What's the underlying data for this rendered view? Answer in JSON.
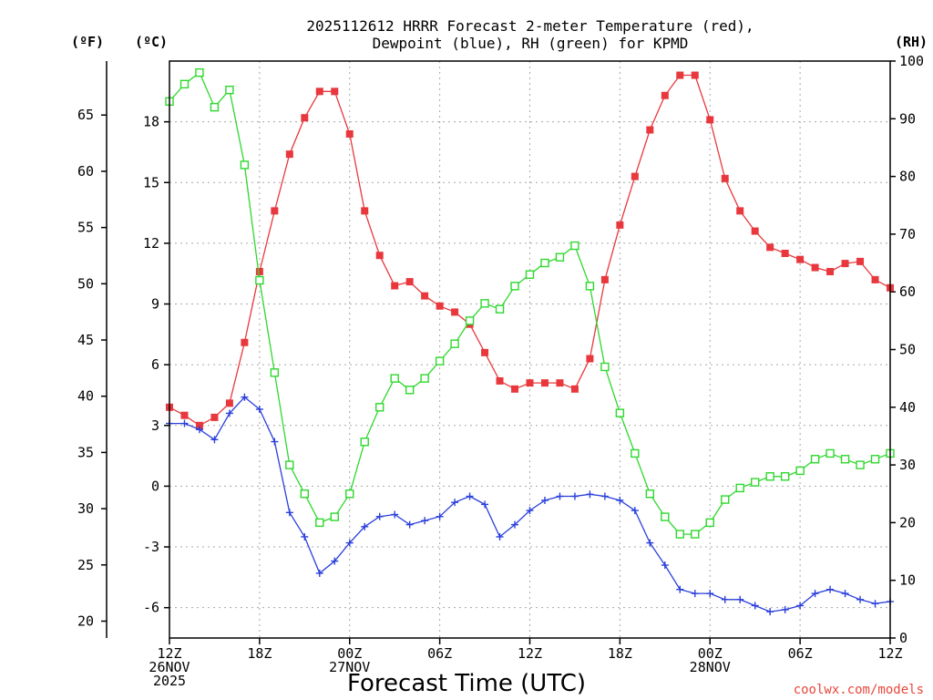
{
  "chart_data": {
    "type": "line",
    "title_line1": "2025112612 HRRR Forecast 2-meter Temperature (red),",
    "title_line2": "Dewpoint (blue), RH (green) for KPMD",
    "unit_f": "(ºF)",
    "unit_c": "(ºC)",
    "unit_rh": "(RH)",
    "xlabel": "Forecast Time (UTC)",
    "credit": "coolwx.com/models",
    "forecast_hours": [
      0,
      1,
      2,
      3,
      4,
      5,
      6,
      7,
      8,
      9,
      10,
      11,
      12,
      13,
      14,
      15,
      16,
      17,
      18,
      19,
      20,
      21,
      22,
      23,
      24,
      25,
      26,
      27,
      28,
      29,
      30,
      31,
      32,
      33,
      34,
      35,
      36,
      37,
      38,
      39,
      40,
      41,
      42,
      43,
      44,
      45,
      46,
      47,
      48
    ],
    "c_axis": {
      "range": [
        -7.5,
        21.0
      ],
      "ticks": [
        "-6",
        "-3",
        "0",
        "3",
        "6",
        "9",
        "12",
        "15",
        "18"
      ],
      "tick_values": [
        -6,
        -3,
        0,
        3,
        6,
        9,
        12,
        15,
        18
      ]
    },
    "f_axis": {
      "ticks": [
        "20",
        "25",
        "30",
        "35",
        "40",
        "45",
        "50",
        "55",
        "60",
        "65"
      ],
      "tick_values": [
        20,
        25,
        30,
        35,
        40,
        45,
        50,
        55,
        60,
        65
      ]
    },
    "rh_axis": {
      "range": [
        0,
        100
      ],
      "ticks": [
        "0",
        "10",
        "20",
        "30",
        "40",
        "50",
        "60",
        "70",
        "80",
        "90",
        "100"
      ],
      "tick_values": [
        0,
        10,
        20,
        30,
        40,
        50,
        60,
        70,
        80,
        90,
        100
      ]
    },
    "x_ticks": [
      {
        "hour": 0,
        "lines": [
          "12Z",
          "26NOV",
          "2025"
        ]
      },
      {
        "hour": 6,
        "lines": [
          "18Z"
        ]
      },
      {
        "hour": 12,
        "lines": [
          "00Z",
          "27NOV"
        ]
      },
      {
        "hour": 18,
        "lines": [
          "06Z"
        ]
      },
      {
        "hour": 24,
        "lines": [
          "12Z"
        ]
      },
      {
        "hour": 30,
        "lines": [
          "18Z"
        ]
      },
      {
        "hour": 36,
        "lines": [
          "00Z",
          "28NOV"
        ]
      },
      {
        "hour": 42,
        "lines": [
          "06Z"
        ]
      },
      {
        "hour": 48,
        "lines": [
          "12Z"
        ]
      }
    ],
    "series": [
      {
        "name": "Temperature",
        "unit": "C",
        "color": "#e8383d",
        "marker": "filled-square",
        "values": [
          3.9,
          3.5,
          3.0,
          3.4,
          4.1,
          7.1,
          10.6,
          13.6,
          16.4,
          18.2,
          19.5,
          19.5,
          17.4,
          13.6,
          11.4,
          9.9,
          10.1,
          9.4,
          8.9,
          8.6,
          8.0,
          6.6,
          5.2,
          4.8,
          5.1,
          5.1,
          5.1,
          4.8,
          6.3,
          10.2,
          12.9,
          15.3,
          17.6,
          19.3,
          20.3,
          20.3,
          18.1,
          15.2,
          13.6,
          12.6,
          11.8,
          11.5,
          11.2,
          10.8,
          10.6,
          11.0,
          11.1,
          10.2,
          9.8
        ]
      },
      {
        "name": "Dewpoint",
        "unit": "C",
        "color": "#2a3fdc",
        "marker": "plus",
        "values": [
          3.1,
          3.1,
          2.8,
          2.3,
          3.6,
          4.4,
          3.8,
          2.2,
          -1.3,
          -2.5,
          -4.3,
          -3.7,
          -2.8,
          -2.0,
          -1.5,
          -1.4,
          -1.9,
          -1.7,
          -1.5,
          -0.8,
          -0.5,
          -0.9,
          -2.5,
          -1.9,
          -1.2,
          -0.7,
          -0.5,
          -0.5,
          -0.4,
          -0.5,
          -0.7,
          -1.2,
          -2.8,
          -3.9,
          -5.1,
          -5.3,
          -5.3,
          -5.6,
          -5.6,
          -5.9,
          -6.2,
          -6.1,
          -5.9,
          -5.3,
          -5.1,
          -5.3,
          -5.6,
          -5.8,
          -5.7
        ]
      },
      {
        "name": "RH",
        "unit": "%",
        "color": "#2ed82e",
        "marker": "open-square",
        "values": [
          93,
          96,
          98,
          92,
          95,
          82,
          62,
          46,
          30,
          25,
          20,
          21,
          25,
          34,
          40,
          45,
          43,
          45,
          48,
          51,
          55,
          58,
          57,
          61,
          63,
          65,
          66,
          68,
          61,
          47,
          39,
          32,
          25,
          21,
          18,
          18,
          20,
          24,
          26,
          27,
          28,
          28,
          29,
          31,
          32,
          31,
          30,
          31,
          32
        ]
      }
    ]
  }
}
